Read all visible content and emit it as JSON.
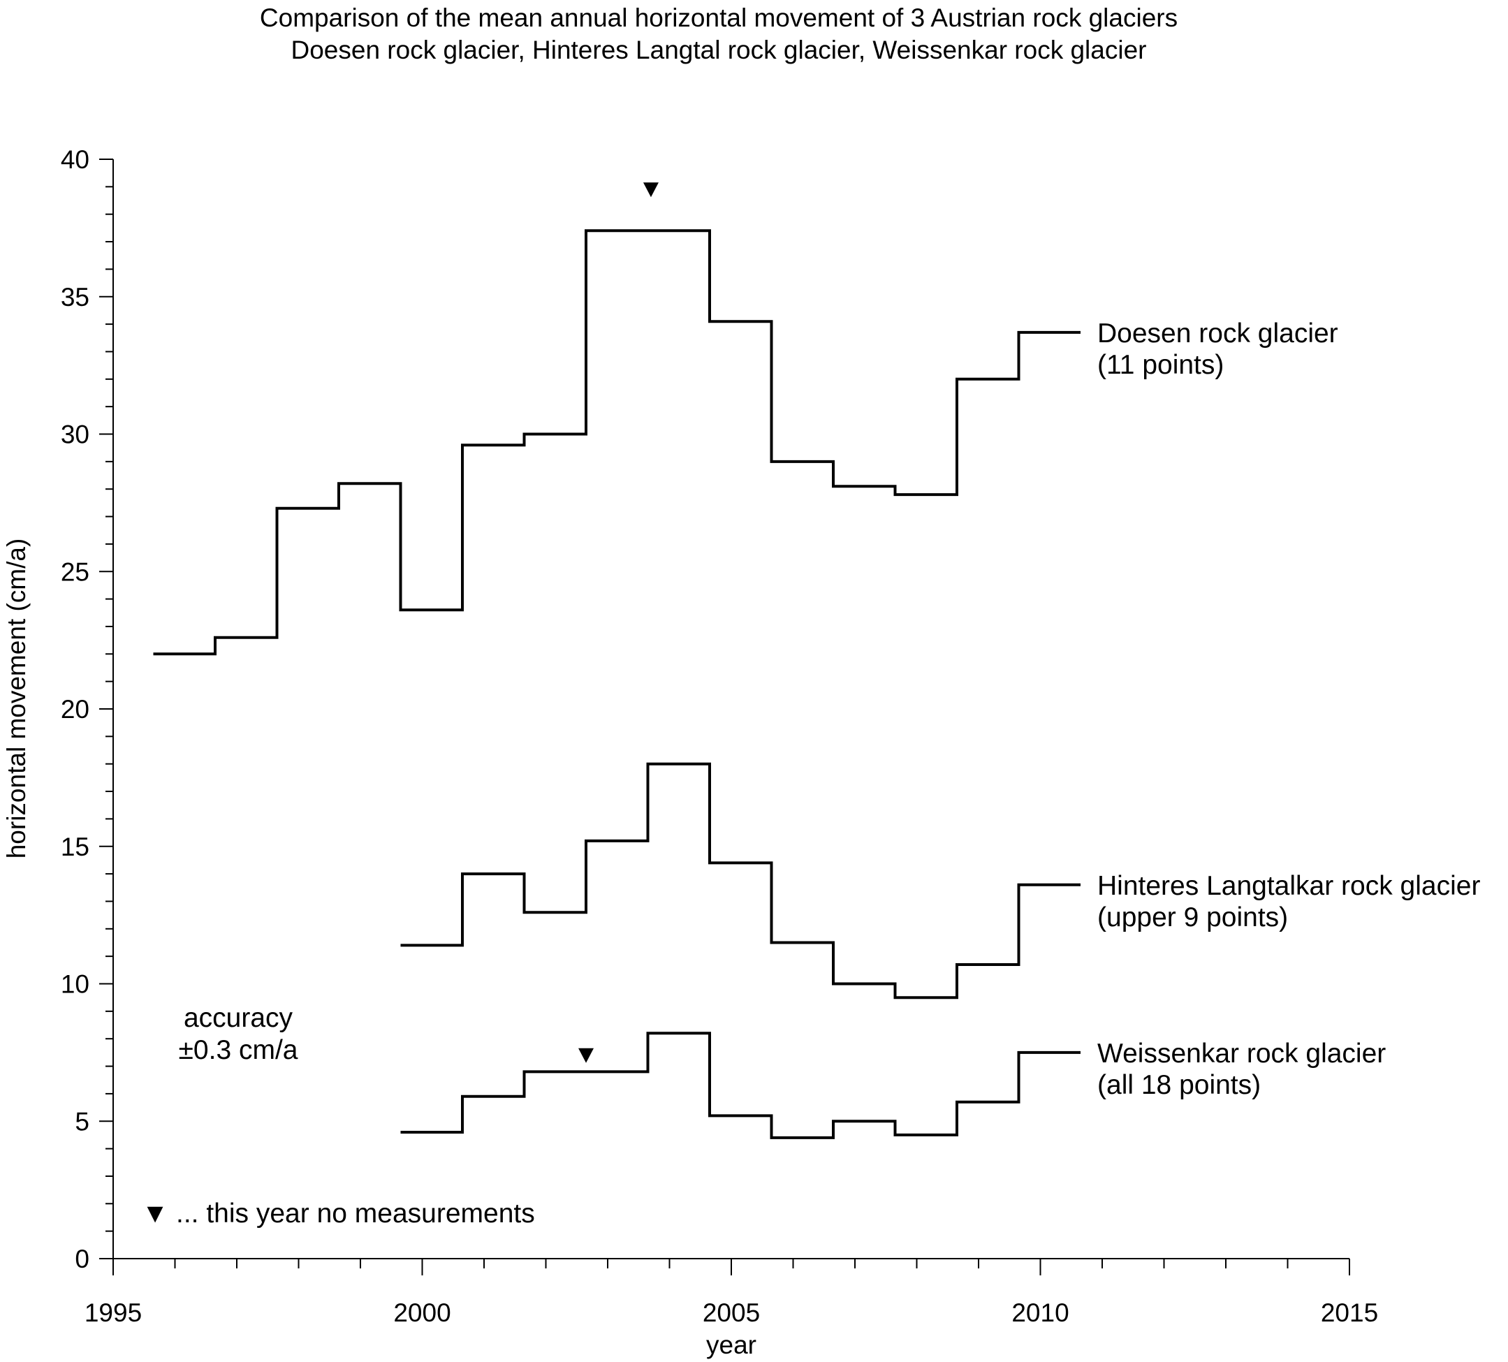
{
  "chart_data": {
    "type": "line",
    "step": "post",
    "title": "Comparison of the mean annual horizontal movement of 3 Austrian rock glaciers",
    "subtitle": "Doesen rock glacier, Hinteres Langtal rock glacier, Weissenkar rock glacier",
    "xlabel": "year",
    "ylabel": "horizontal movement (cm/a)",
    "xlim": [
      1995,
      2015
    ],
    "ylim": [
      0,
      40
    ],
    "x_ticks": [
      "1995",
      "2000",
      "2005",
      "2010",
      "2015"
    ],
    "y_ticks": [
      "0",
      "5",
      "10",
      "15",
      "20",
      "25",
      "30",
      "35",
      "40"
    ],
    "grid": false,
    "series": [
      {
        "name": "Doesen rock glacier",
        "label_lines": [
          "Doesen rock glacier",
          "(11 points)"
        ],
        "x": [
          1995.65,
          1996.65,
          1997.65,
          1998.65,
          1999.65,
          2000.65,
          2001.65,
          2002.65,
          2003.65,
          2004.65,
          2005.65,
          2006.65,
          2007.65,
          2008.65,
          2009.65
        ],
        "values": [
          22.0,
          22.6,
          27.3,
          28.2,
          23.6,
          29.6,
          30.0,
          37.4,
          37.4,
          34.1,
          29.0,
          28.1,
          27.8,
          32.0,
          33.7
        ],
        "x_end": 2010.65
      },
      {
        "name": "Hinteres Langtalkar rock glacier",
        "label_lines": [
          "Hinteres Langtalkar rock glacier",
          "(upper 9 points)"
        ],
        "x": [
          1999.65,
          2000.65,
          2001.65,
          2002.65,
          2003.65,
          2004.65,
          2005.65,
          2006.65,
          2007.65,
          2008.65,
          2009.65
        ],
        "values": [
          11.4,
          14.0,
          12.6,
          15.2,
          18.0,
          14.4,
          11.5,
          10.0,
          9.5,
          10.7,
          13.6
        ],
        "x_end": 2010.65
      },
      {
        "name": "Weissenkar rock glacier",
        "label_lines": [
          "Weissenkar rock glacier",
          "(all 18 points)"
        ],
        "x": [
          1999.65,
          2000.65,
          2001.65,
          2002.65,
          2003.65,
          2004.65,
          2005.65,
          2006.65,
          2007.65,
          2008.65,
          2009.65
        ],
        "values": [
          4.6,
          5.9,
          6.8,
          6.8,
          8.2,
          5.2,
          4.4,
          5.0,
          4.5,
          5.7,
          7.5
        ],
        "x_end": 2010.65
      }
    ],
    "no_measurement_markers": [
      {
        "series": "Doesen rock glacier",
        "x": 2003.7,
        "y": 38.9
      },
      {
        "series": "Weissenkar rock glacier",
        "x": 2002.65,
        "y": 7.4
      }
    ],
    "annotations": {
      "accuracy_lines": [
        "accuracy",
        "±0.3 cm/a"
      ],
      "legend_marker_text": "... this year no measurements",
      "marker_symbol": "▼"
    }
  }
}
